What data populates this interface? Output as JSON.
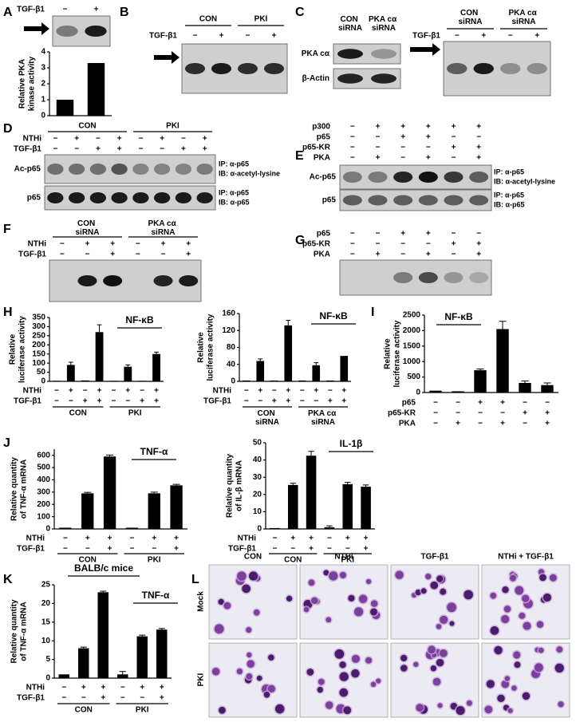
{
  "chart_data": [
    {
      "type": "bar",
      "panel": "A",
      "ylabel": [
        "Relative PKA",
        "kinase activity"
      ],
      "values": [
        1,
        3.3
      ],
      "errors": [
        null,
        null
      ],
      "color": "#000000",
      "ylim": [
        0,
        4
      ],
      "yticks": [
        0,
        1,
        2,
        3,
        4
      ],
      "conditions": [
        {
          "name": "TGF-β1",
          "marks": [
            "−",
            "+"
          ]
        }
      ]
    },
    {
      "type": "bar",
      "panel": "H",
      "title": "NF-κB",
      "ylabel": [
        "Relative",
        "luciferase activity"
      ],
      "values": [
        3,
        90,
        5,
        270,
        3,
        80,
        3,
        150
      ],
      "errors": [
        null,
        15,
        null,
        40,
        null,
        10,
        null,
        10
      ],
      "color": "#000000",
      "ylim": [
        0,
        350
      ],
      "yticks": [
        0,
        50,
        100,
        150,
        200,
        250,
        300,
        350
      ],
      "conditions": [
        {
          "name": "NTHi",
          "marks": [
            "−",
            "+",
            "−",
            "+",
            "−",
            "+",
            "−",
            "+"
          ]
        },
        {
          "name": "TGF-β1",
          "marks": [
            "−",
            "−",
            "+",
            "+",
            "−",
            "−",
            "+",
            "+"
          ]
        }
      ],
      "groups": [
        "CON",
        "PKI"
      ]
    },
    {
      "type": "bar",
      "title": "NF-κB",
      "ylabel": [
        "Relative",
        "luciferase activity"
      ],
      "values": [
        2,
        48,
        2,
        132,
        2,
        38,
        2,
        60
      ],
      "errors": [
        null,
        5,
        null,
        12,
        null,
        6,
        null,
        null
      ],
      "color": "#000000",
      "ylim": [
        0,
        160
      ],
      "yticks": [
        0,
        40,
        80,
        120,
        160
      ],
      "conditions": [
        {
          "name": "NTHi",
          "marks": [
            "−",
            "+",
            "−",
            "+",
            "−",
            "+",
            "−",
            "+"
          ]
        },
        {
          "name": "TGF-β1",
          "marks": [
            "−",
            "−",
            "+",
            "+",
            "−",
            "−",
            "+",
            "+"
          ]
        }
      ],
      "groups": [
        "CON siRNA",
        "PKA cα siRNA"
      ]
    },
    {
      "type": "bar",
      "panel": "I",
      "title": "NF-κB",
      "ylabel": [
        "Relative",
        "luciferase activity"
      ],
      "values": [
        60,
        40,
        720,
        2050,
        310,
        240
      ],
      "errors": [
        null,
        null,
        40,
        250,
        60,
        70
      ],
      "color": "#000000",
      "ylim": [
        0,
        2500
      ],
      "yticks": [
        0,
        500,
        1000,
        1500,
        2000,
        2500
      ],
      "conditions": [
        {
          "name": "p65",
          "marks": [
            "−",
            "−",
            "+",
            "+",
            "−",
            "−"
          ]
        },
        {
          "name": "p65-KR",
          "marks": [
            "−",
            "−",
            "−",
            "−",
            "+",
            "+"
          ]
        },
        {
          "name": "PKA",
          "marks": [
            "−",
            "+",
            "−",
            "+",
            "−",
            "+"
          ]
        }
      ]
    },
    {
      "type": "bar",
      "panel": "J",
      "title": "TNF-α",
      "ylabel": [
        "Relative quantity",
        "of TNF-α mRNA"
      ],
      "values": [
        10,
        290,
        590,
        10,
        290,
        355
      ],
      "errors": [
        null,
        8,
        12,
        null,
        10,
        8
      ],
      "color": "#000000",
      "ylim": [
        0,
        650
      ],
      "yticks": [
        0,
        100,
        200,
        300,
        400,
        500,
        600
      ],
      "conditions": [
        {
          "name": "NTHi",
          "marks": [
            "−",
            "+",
            "+",
            "−",
            "+",
            "+"
          ]
        },
        {
          "name": "TGF-β1",
          "marks": [
            "−",
            "−",
            "+",
            "−",
            "−",
            "+"
          ]
        }
      ],
      "groups": [
        "CON",
        "PKI"
      ]
    },
    {
      "type": "bar",
      "title": "IL-1β",
      "ylabel": [
        "Relative quantity",
        "of IL-β mRNA"
      ],
      "values": [
        0.5,
        25.5,
        42.5,
        1,
        26,
        24.5
      ],
      "errors": [
        null,
        1,
        2.5,
        0.8,
        1,
        1
      ],
      "color": "#000000",
      "ylim": [
        0,
        50
      ],
      "yticks": [
        0,
        10,
        20,
        30,
        40,
        50
      ],
      "conditions": [
        {
          "name": "NTHi",
          "marks": [
            "−",
            "+",
            "+",
            "−",
            "+",
            "+"
          ]
        },
        {
          "name": "TGF-β1",
          "marks": [
            "−",
            "−",
            "+",
            "−",
            "−",
            "+"
          ]
        }
      ],
      "groups": [
        "CON",
        "PKI"
      ]
    },
    {
      "type": "bar",
      "panel": "K",
      "subtitle": "BALB/c mice",
      "title": "TNF-α",
      "ylabel": [
        "Relative quantity",
        "of TNF-α mRNA"
      ],
      "values": [
        1,
        8,
        23,
        1,
        11.2,
        13
      ],
      "errors": [
        null,
        0.3,
        0.3,
        0.8,
        0.3,
        0.3
      ],
      "color": "#000000",
      "ylim": [
        0,
        25
      ],
      "yticks": [
        0,
        5,
        10,
        15,
        20,
        25
      ],
      "conditions": [
        {
          "name": "NTHi",
          "marks": [
            "−",
            "+",
            "+",
            "−",
            "+",
            "+"
          ]
        },
        {
          "name": "TGF-β1",
          "marks": [
            "−",
            "−",
            "+",
            "−",
            "−",
            "+"
          ]
        }
      ],
      "groups": [
        "CON",
        "PKI"
      ]
    }
  ],
  "blots": [
    {
      "panel": "B",
      "groups": [
        "CON",
        "PKI"
      ],
      "conditions": [
        {
          "name": "TGF-β1",
          "marks": [
            "−",
            "+",
            "−",
            "+"
          ]
        }
      ]
    },
    {
      "panel": "C",
      "groups": [
        "CON siRNA",
        "PKA cα siRNA"
      ],
      "rows": [
        {
          "name": "PKA cα"
        },
        {
          "name": "β-Actin"
        }
      ]
    },
    {
      "groups": [
        "CON siRNA",
        "PKA cα siRNA"
      ],
      "conditions": [
        {
          "name": "TGF-β1",
          "marks": [
            "−",
            "+",
            "−",
            "+"
          ]
        }
      ]
    },
    {
      "panel": "D",
      "groups": [
        "CON",
        "PKI"
      ],
      "conditions": [
        {
          "name": "NTHi",
          "marks": [
            "−",
            "+",
            "−",
            "+",
            "−",
            "+",
            "−",
            "+"
          ]
        },
        {
          "name": "TGF-β1",
          "marks": [
            "−",
            "−",
            "+",
            "+",
            "−",
            "−",
            "+",
            "+"
          ]
        }
      ],
      "rows": [
        {
          "name": "Ac-p65",
          "notes": [
            "IP: α-p65",
            "IB: α-acetyl-lysine"
          ]
        },
        {
          "name": "p65",
          "notes": [
            "IP: α-p65",
            "IB: α-p65"
          ]
        }
      ]
    },
    {
      "panel": "E",
      "conditions": [
        {
          "name": "p300",
          "marks": [
            "−",
            "+",
            "+",
            "+",
            "+",
            "+"
          ]
        },
        {
          "name": "p65",
          "marks": [
            "−",
            "−",
            "+",
            "+",
            "−",
            "−"
          ]
        },
        {
          "name": "p65-KR",
          "marks": [
            "−",
            "−",
            "−",
            "−",
            "+",
            "+"
          ]
        },
        {
          "name": "PKA",
          "marks": [
            "−",
            "+",
            "−",
            "+",
            "−",
            "+"
          ]
        }
      ],
      "rows": [
        {
          "name": "Ac-p65",
          "notes": [
            "IP: α-p65",
            "IB: α-acetyl-lysine"
          ]
        },
        {
          "name": "p65",
          "notes": [
            "IP: α-p65",
            "IB: α-p65"
          ]
        }
      ]
    },
    {
      "panel": "F",
      "groups": [
        "CON siRNA",
        "PKA cα siRNA"
      ],
      "conditions": [
        {
          "name": "NTHi",
          "marks": [
            "−",
            "+",
            "+",
            "−",
            "+",
            "+"
          ]
        },
        {
          "name": "TGF-β1",
          "marks": [
            "−",
            "−",
            "+",
            "−",
            "−",
            "+"
          ]
        }
      ]
    },
    {
      "panel": "G",
      "conditions": [
        {
          "name": "p65",
          "marks": [
            "−",
            "−",
            "+",
            "+",
            "−",
            "−"
          ]
        },
        {
          "name": "p65-KR",
          "marks": [
            "−",
            "−",
            "−",
            "−",
            "+",
            "+"
          ]
        },
        {
          "name": "PKA",
          "marks": [
            "−",
            "+",
            "−",
            "+",
            "−",
            "+"
          ]
        }
      ]
    }
  ],
  "micrographs": {
    "panel": "L",
    "columns": [
      "CON",
      "NTHi",
      "TGF-β1",
      "NTHi + TGF-β1"
    ],
    "rows": [
      "Mock",
      "PKI"
    ]
  }
}
